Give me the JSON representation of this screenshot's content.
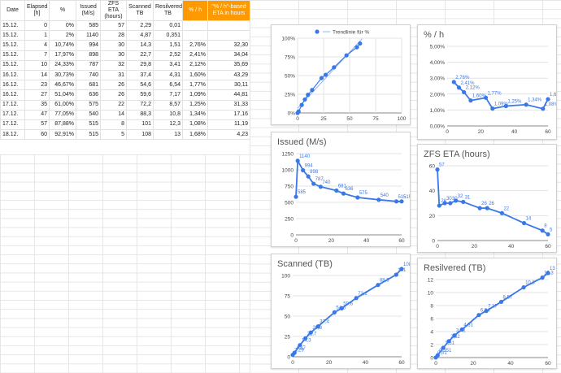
{
  "sheet": {
    "headers": [
      "Date",
      "Elapsed [h]",
      "%",
      "Issued (M/s)",
      "ZFS ETA (hours)",
      "Scanned TB",
      "Resilvered TB",
      "% / h",
      "\"% / h\"-based ETA in hours"
    ],
    "rows": [
      [
        "15.12.",
        "0",
        "0%",
        "585",
        "57",
        "2,29",
        "0,01",
        "",
        ""
      ],
      [
        "15.12.",
        "1",
        "2%",
        "1140",
        "28",
        "4,87",
        "0,351",
        "",
        ""
      ],
      [
        "15.12.",
        "4",
        "10,74%",
        "994",
        "30",
        "14,3",
        "1,51",
        "2,76%",
        "32,30"
      ],
      [
        "15.12.",
        "7",
        "17,97%",
        "898",
        "30",
        "22,7",
        "2,52",
        "2,41%",
        "34,04"
      ],
      [
        "15.12.",
        "10",
        "24,33%",
        "787",
        "32",
        "29,8",
        "3,41",
        "2,12%",
        "35,69"
      ],
      [
        "16.12.",
        "14",
        "30,73%",
        "740",
        "31",
        "37,4",
        "4,31",
        "1,60%",
        "43,29"
      ],
      [
        "16.12.",
        "23",
        "46,67%",
        "681",
        "26",
        "54,6",
        "6,54",
        "1,77%",
        "30,11"
      ],
      [
        "16.12.",
        "27",
        "51,04%",
        "636",
        "26",
        "59,6",
        "7,17",
        "1,09%",
        "44,81"
      ],
      [
        "17.12.",
        "35",
        "61,00%",
        "575",
        "22",
        "72,2",
        "8,57",
        "1,25%",
        "31,33"
      ],
      [
        "17.12.",
        "47",
        "77,05%",
        "540",
        "14",
        "88,3",
        "10,8",
        "1,34%",
        "17,16"
      ],
      [
        "17.12.",
        "57",
        "87,88%",
        "515",
        "8",
        "101",
        "12,3",
        "1,08%",
        "11,19"
      ],
      [
        "18.12.",
        "60",
        "92,91%",
        "515",
        "5",
        "108",
        "13",
        "1,68%",
        "4,23"
      ]
    ]
  },
  "accent": "#ff9900",
  "series_color": "#3b78e7",
  "chart_data": [
    {
      "type": "scatter",
      "title": "",
      "legend": "Trendlinie für %",
      "legend_position": "top",
      "x": [
        0,
        1,
        4,
        7,
        10,
        14,
        23,
        27,
        35,
        47,
        57,
        60
      ],
      "y": [
        0,
        2,
        10.74,
        17.97,
        24.33,
        30.73,
        46.67,
        51.04,
        61,
        77.05,
        87.88,
        92.91
      ],
      "xlim": [
        0,
        100
      ],
      "ylim": [
        0,
        100
      ],
      "xticks": [
        "0",
        "25",
        "50",
        "75",
        "100"
      ],
      "yticks": [
        "0%",
        "25%",
        "50%",
        "75%",
        "100%"
      ],
      "trendline": true,
      "grid": true
    },
    {
      "type": "line",
      "title": "% / h",
      "x": [
        4,
        7,
        10,
        14,
        23,
        27,
        35,
        47,
        57,
        60
      ],
      "y": [
        2.76,
        2.41,
        2.12,
        1.6,
        1.77,
        1.09,
        1.25,
        1.34,
        1.08,
        1.68
      ],
      "labels": [
        "2,76%",
        "2,41%",
        "2,12%",
        "1,60%",
        "1,77%",
        "1,09%",
        "1,25%",
        "1,34%",
        "1,08%",
        "1,68%"
      ],
      "xlim": [
        0,
        60
      ],
      "ylim": [
        0,
        5
      ],
      "xticks": [
        "0",
        "20",
        "40",
        "60"
      ],
      "yticks": [
        "0,00%",
        "1,00%",
        "2,00%",
        "3,00%",
        "4,00%",
        "5,00%"
      ],
      "grid": true
    },
    {
      "type": "line",
      "title": "Issued (M/s)",
      "x": [
        0,
        1,
        4,
        7,
        10,
        14,
        23,
        27,
        35,
        47,
        57,
        60
      ],
      "y": [
        585,
        1140,
        994,
        898,
        787,
        740,
        681,
        636,
        575,
        540,
        515,
        515
      ],
      "labels": [
        "585",
        "1140",
        "994",
        "898",
        "787",
        "740",
        "681",
        "636",
        "575",
        "540",
        "515",
        "515"
      ],
      "xlim": [
        0,
        60
      ],
      "ylim": [
        0,
        1250
      ],
      "xticks": [
        "0",
        "20",
        "40",
        "60"
      ],
      "yticks": [
        "0",
        "250",
        "500",
        "750",
        "1000",
        "1250"
      ],
      "grid": true
    },
    {
      "type": "line",
      "title": "ZFS ETA (hours)",
      "x": [
        0,
        1,
        4,
        7,
        10,
        14,
        23,
        27,
        35,
        47,
        57,
        60
      ],
      "y": [
        57,
        28,
        30,
        30,
        32,
        31,
        26,
        26,
        22,
        14,
        8,
        5
      ],
      "labels": [
        "57",
        "28",
        "30",
        "30",
        "32",
        "31",
        "26",
        "26",
        "22",
        "14",
        "8",
        "5"
      ],
      "xlim": [
        0,
        60
      ],
      "ylim": [
        0,
        60
      ],
      "xticks": [
        "0",
        "20",
        "40",
        "60"
      ],
      "yticks": [
        "0",
        "20",
        "40",
        "60"
      ],
      "grid": true
    },
    {
      "type": "line",
      "title": "Scanned (TB)",
      "x": [
        0,
        1,
        4,
        7,
        10,
        14,
        23,
        27,
        35,
        47,
        57,
        60
      ],
      "y": [
        2.29,
        4.87,
        14.3,
        22.7,
        29.8,
        37.4,
        54.6,
        59.6,
        72.2,
        88.3,
        101,
        108
      ],
      "labels": [
        "2,29",
        "4,87",
        "14,3",
        "22,7",
        "29,8",
        "37,4",
        "54,6",
        "59,6",
        "72,2",
        "88,3",
        "101",
        "108"
      ],
      "xlim": [
        0,
        60
      ],
      "ylim": [
        0,
        100
      ],
      "xticks": [
        "0",
        "20",
        "40",
        "60"
      ],
      "yticks": [
        "0",
        "25",
        "50",
        "75",
        "100"
      ],
      "grid": true
    },
    {
      "type": "line",
      "title": "Resilvered (TB)",
      "x": [
        0,
        1,
        4,
        7,
        10,
        14,
        23,
        27,
        35,
        47,
        57,
        60
      ],
      "y": [
        0.01,
        0.351,
        1.51,
        2.52,
        3.41,
        4.31,
        6.54,
        7.17,
        8.57,
        10.8,
        12.3,
        13
      ],
      "labels": [
        "0,01",
        "0,351",
        "1,51",
        "2,52",
        "3,41",
        "4,31",
        "6,54",
        "7,17",
        "8,57",
        "10,8",
        "12,3",
        "13"
      ],
      "xlim": [
        0,
        60
      ],
      "ylim": [
        0,
        12
      ],
      "xticks": [
        "0",
        "20",
        "40",
        "60"
      ],
      "yticks": [
        "0",
        "2",
        "4",
        "6",
        "8",
        "10",
        "12"
      ],
      "grid": true
    }
  ]
}
